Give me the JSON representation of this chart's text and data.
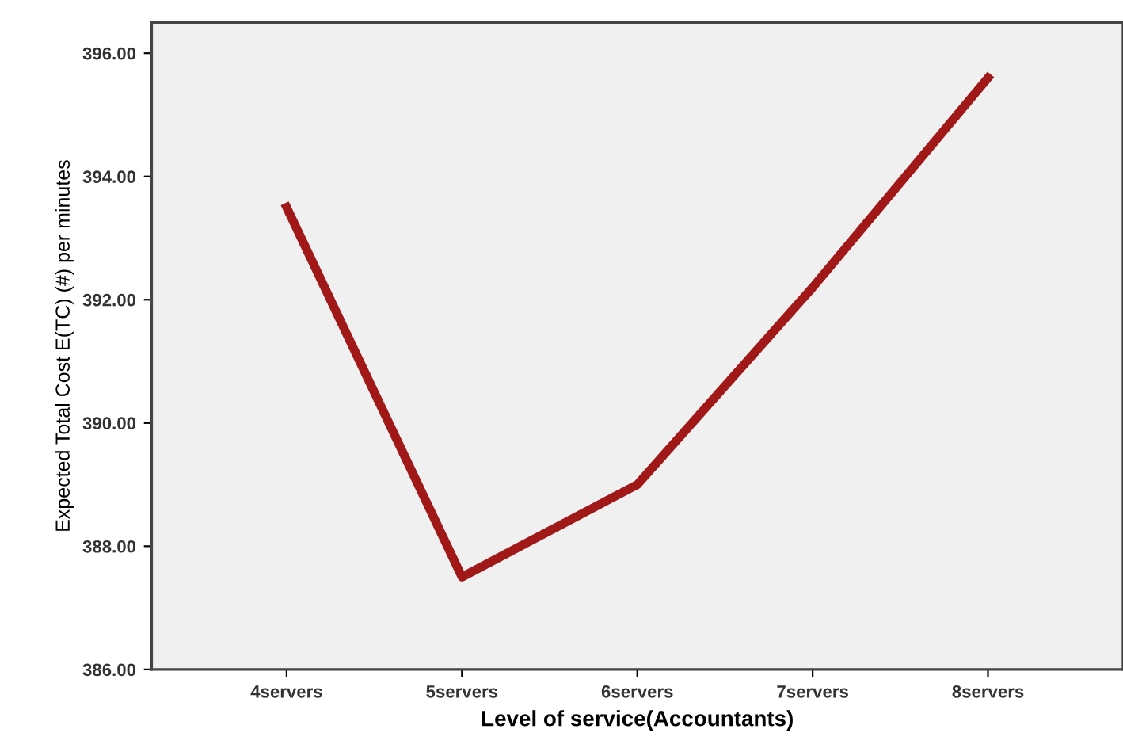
{
  "chart_data": {
    "type": "line",
    "xlabel": "Level of service(Accountants)",
    "ylabel": "Expected Total Cost E(TC) (#) per minutes",
    "categories": [
      "4servers",
      "5servers",
      "6servers",
      "7servers",
      "8servers"
    ],
    "series": [
      {
        "color": "#a01818",
        "values": [
          393.5,
          387.5,
          389.0,
          392.2,
          395.6
        ]
      }
    ],
    "ylim": [
      386,
      396.5
    ],
    "yticks": [
      {
        "value": 386,
        "label": "386.00"
      },
      {
        "value": 388,
        "label": "388.00"
      },
      {
        "value": 390,
        "label": "390.00"
      },
      {
        "value": 392,
        "label": "392.00"
      },
      {
        "value": 394,
        "label": "394.00"
      },
      {
        "value": 396,
        "label": "396.00"
      }
    ],
    "grid": false,
    "legend": false,
    "marker": "none",
    "line_style": "solid"
  }
}
